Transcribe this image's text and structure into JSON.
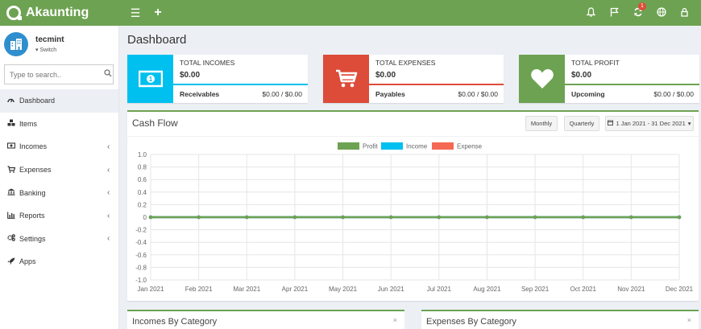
{
  "app": {
    "name": "Akaunting"
  },
  "topbar": {
    "left_icons": [
      "menu-icon",
      "plus-icon"
    ],
    "right_icons": [
      "bell-icon",
      "flag-icon",
      "refresh-icon",
      "globe-icon",
      "user-icon"
    ],
    "refresh_badge": "1"
  },
  "sidebar": {
    "user": {
      "name": "tecmint",
      "switch_label": "Switch"
    },
    "search": {
      "placeholder": "Type to search.."
    },
    "items": [
      {
        "label": "Dashboard",
        "icon": "dashboard-icon",
        "active": true,
        "has_caret": false
      },
      {
        "label": "Items",
        "icon": "cubes-icon",
        "active": false,
        "has_caret": false
      },
      {
        "label": "Incomes",
        "icon": "money-icon",
        "active": false,
        "has_caret": true
      },
      {
        "label": "Expenses",
        "icon": "cart-icon",
        "active": false,
        "has_caret": true
      },
      {
        "label": "Banking",
        "icon": "bank-icon",
        "active": false,
        "has_caret": true
      },
      {
        "label": "Reports",
        "icon": "bar-chart-icon",
        "active": false,
        "has_caret": true
      },
      {
        "label": "Settings",
        "icon": "gears-icon",
        "active": false,
        "has_caret": true
      },
      {
        "label": "Apps",
        "icon": "rocket-icon",
        "active": false,
        "has_caret": false
      }
    ]
  },
  "page": {
    "title": "Dashboard"
  },
  "info_boxes": [
    {
      "label": "TOTAL INCOMES",
      "value": "$0.00",
      "foot_name": "Receivables",
      "foot_value": "$0.00 / $0.00",
      "color": "#00c0ef",
      "icon": "money-icon"
    },
    {
      "label": "TOTAL EXPENSES",
      "value": "$0.00",
      "foot_name": "Payables",
      "foot_value": "$0.00 / $0.00",
      "color": "#dd4b39",
      "icon": "cart-icon"
    },
    {
      "label": "TOTAL PROFIT",
      "value": "$0.00",
      "foot_name": "Upcoming",
      "foot_value": "$0.00 / $0.00",
      "color": "#6da252",
      "icon": "heart-icon"
    }
  ],
  "cash_flow": {
    "title": "Cash Flow",
    "buttons": {
      "monthly": "Monthly",
      "quarterly": "Quarterly",
      "date_range": "1 Jan 2021 - 31 Dec 2021"
    }
  },
  "chart_data": {
    "type": "line",
    "categories": [
      "Jan 2021",
      "Feb 2021",
      "Mar 2021",
      "Apr 2021",
      "May 2021",
      "Jun 2021",
      "Jul 2021",
      "Aug 2021",
      "Sep 2021",
      "Oct 2021",
      "Nov 2021",
      "Dec 2021"
    ],
    "series": [
      {
        "name": "Profit",
        "color": "#6da252",
        "values": [
          0,
          0,
          0,
          0,
          0,
          0,
          0,
          0,
          0,
          0,
          0,
          0
        ]
      },
      {
        "name": "Income",
        "color": "#00c0ef",
        "values": [
          0,
          0,
          0,
          0,
          0,
          0,
          0,
          0,
          0,
          0,
          0,
          0
        ]
      },
      {
        "name": "Expense",
        "color": "#f56954",
        "values": [
          0,
          0,
          0,
          0,
          0,
          0,
          0,
          0,
          0,
          0,
          0,
          0
        ]
      }
    ],
    "ylim": [
      -1.0,
      1.0
    ],
    "yticks": [
      "1.0",
      "0.8",
      "0.6",
      "0.4",
      "0.2",
      "0",
      "-0.2",
      "-0.4",
      "-0.6",
      "-0.8",
      "-1.0"
    ],
    "grid": true,
    "legend_position": "top"
  },
  "bottom_boxes": [
    {
      "title": "Incomes By Category",
      "close": "×"
    },
    {
      "title": "Expenses By Category",
      "close": "×"
    }
  ]
}
